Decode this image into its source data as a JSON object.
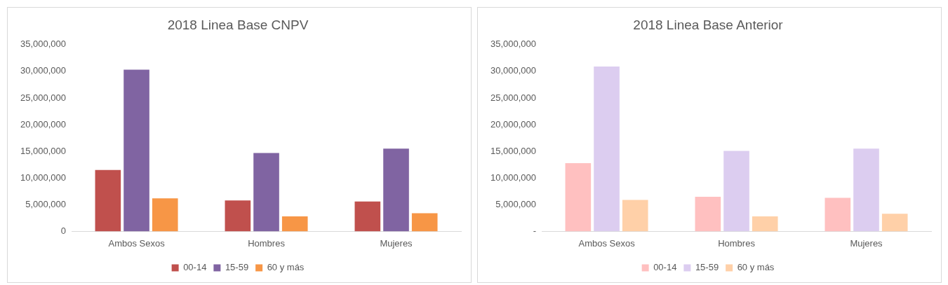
{
  "chart_data": [
    {
      "type": "bar",
      "title": "2018 Linea Base CNPV",
      "categories": [
        "Ambos Sexos",
        "Hombres",
        "Mujeres"
      ],
      "series": [
        {
          "name": "00-14",
          "color": "#c0504d",
          "values": [
            11500000,
            5800000,
            5600000
          ]
        },
        {
          "name": "15-59",
          "color": "#8064a2",
          "values": [
            30300000,
            14700000,
            15500000
          ]
        },
        {
          "name": "60 y más",
          "color": "#f79646",
          "values": [
            6200000,
            2800000,
            3400000
          ]
        }
      ],
      "ylim": [
        0,
        35000000
      ],
      "yticks": [
        {
          "value": 0,
          "label": "0"
        },
        {
          "value": 5000000,
          "label": "5,000,000"
        },
        {
          "value": 10000000,
          "label": "10,000,000"
        },
        {
          "value": 15000000,
          "label": "15,000,000"
        },
        {
          "value": 20000000,
          "label": "20,000,000"
        },
        {
          "value": 25000000,
          "label": "25,000,000"
        },
        {
          "value": 30000000,
          "label": "30,000,000"
        },
        {
          "value": 35000000,
          "label": "35,000,000"
        }
      ],
      "legend": "bottom"
    },
    {
      "type": "bar",
      "title": "2018 Linea Base Anterior",
      "categories": [
        "Ambos Sexos",
        "Hombres",
        "Mujeres"
      ],
      "series": [
        {
          "name": "00-14",
          "color": "#ffc0c0",
          "values": [
            12800000,
            6500000,
            6300000
          ]
        },
        {
          "name": "15-59",
          "color": "#dccdf0",
          "values": [
            30900000,
            15100000,
            15500000
          ]
        },
        {
          "name": "60 y más",
          "color": "#ffd0a8",
          "values": [
            5900000,
            2800000,
            3300000
          ]
        }
      ],
      "ylim": [
        0,
        35000000
      ],
      "yticks": [
        {
          "value": 0,
          "label": "-"
        },
        {
          "value": 5000000,
          "label": "5,000,000"
        },
        {
          "value": 10000000,
          "label": "10,000,000"
        },
        {
          "value": 15000000,
          "label": "15,000,000"
        },
        {
          "value": 20000000,
          "label": "20,000,000"
        },
        {
          "value": 25000000,
          "label": "25,000,000"
        },
        {
          "value": 30000000,
          "label": "30,000,000"
        },
        {
          "value": 35000000,
          "label": "35,000,000"
        }
      ],
      "legend": "bottom"
    }
  ]
}
